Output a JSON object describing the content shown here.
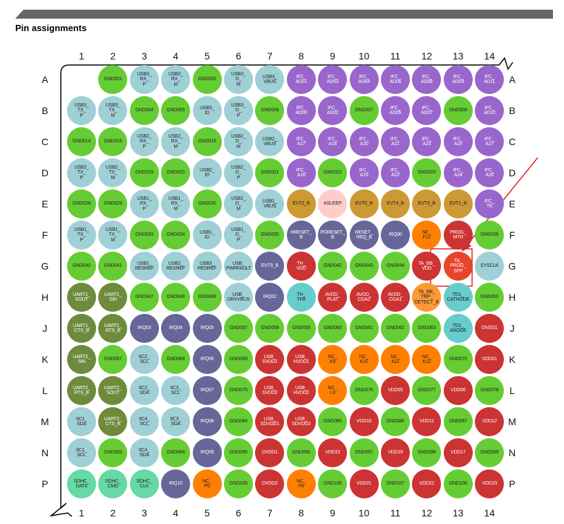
{
  "header": {
    "title": "Pin assignments"
  },
  "columns": [
    "1",
    "2",
    "3",
    "4",
    "5",
    "6",
    "7",
    "8",
    "9",
    "10",
    "11",
    "12",
    "13",
    "14"
  ],
  "rows": [
    "A",
    "B",
    "C",
    "D",
    "E",
    "F",
    "G",
    "H",
    "J",
    "K",
    "L",
    "M",
    "N",
    "P"
  ],
  "grid": [
    [
      null,
      {
        "label": "GND001",
        "color": "#66cc33"
      },
      {
        "label": "USB3_\nRX_\nP",
        "color": "#9fd0d6"
      },
      {
        "label": "USB3_\nRX_\nM",
        "color": "#9fd0d6"
      },
      {
        "label": "GND002",
        "color": "#66cc33"
      },
      {
        "label": "USB3_\nD_\nM",
        "color": "#9fd0d6"
      },
      {
        "label": "USB3_\nVBUS",
        "color": "#9fd0d6"
      },
      {
        "label": "IFC_\nAD01",
        "color": "#9966cc"
      },
      {
        "label": "IFC_\nAD03",
        "color": "#9966cc"
      },
      {
        "label": "IFC_\nAD04",
        "color": "#9966cc"
      },
      {
        "label": "IFC_\nAD06",
        "color": "#9966cc"
      },
      {
        "label": "IFC_\nAD08",
        "color": "#9966cc"
      },
      {
        "label": "IFC_\nAD09",
        "color": "#9966cc"
      },
      {
        "label": "IFC_\nAD11",
        "color": "#9966cc"
      }
    ],
    [
      {
        "label": "USB3_\nTX_\nP",
        "color": "#9fd0d6"
      },
      {
        "label": "USB3_\nTX_\nM",
        "color": "#9fd0d6"
      },
      {
        "label": "GND004",
        "color": "#66cc33"
      },
      {
        "label": "GND005",
        "color": "#66cc33"
      },
      {
        "label": "USB3_\nID",
        "color": "#9fd0d6"
      },
      {
        "label": "USB3_\nD_\nP",
        "color": "#9fd0d6"
      },
      {
        "label": "GND006",
        "color": "#66cc33"
      },
      {
        "label": "IFC_\nAD00",
        "color": "#9966cc"
      },
      {
        "label": "IFC_\nAD02",
        "color": "#9966cc"
      },
      {
        "label": "GND007",
        "color": "#66cc33"
      },
      {
        "label": "IFC_\nAD05",
        "color": "#9966cc"
      },
      {
        "label": "IFC_\nAD07",
        "color": "#9966cc"
      },
      {
        "label": "GND008",
        "color": "#66cc33"
      },
      {
        "label": "IFC_\nAD10",
        "color": "#9966cc"
      }
    ],
    [
      {
        "label": "GND014",
        "color": "#66cc33"
      },
      {
        "label": "GND015",
        "color": "#66cc33"
      },
      {
        "label": "USB2_\nRX_\nP",
        "color": "#9fd0d6"
      },
      {
        "label": "USB2_\nRX_\nM",
        "color": "#9fd0d6"
      },
      {
        "label": "GND016",
        "color": "#66cc33"
      },
      {
        "label": "USB2_\nD_\nM",
        "color": "#9fd0d6"
      },
      {
        "label": "USB2_\nVBUS",
        "color": "#9fd0d6"
      },
      {
        "label": "IFC_\nA17",
        "color": "#9966cc"
      },
      {
        "label": "IFC_\nA18",
        "color": "#9966cc"
      },
      {
        "label": "IFC_\nA20",
        "color": "#9966cc"
      },
      {
        "label": "IFC_\nA21",
        "color": "#9966cc"
      },
      {
        "label": "IFC_\nA23",
        "color": "#9966cc"
      },
      {
        "label": "IFC_\nA25",
        "color": "#9966cc"
      },
      {
        "label": "IFC_\nA27",
        "color": "#9966cc"
      }
    ],
    [
      {
        "label": "USB2_\nTX_\nP",
        "color": "#9fd0d6"
      },
      {
        "label": "USB2_\nTX_\nM",
        "color": "#9fd0d6"
      },
      {
        "label": "GND019",
        "color": "#66cc33"
      },
      {
        "label": "GND020",
        "color": "#66cc33"
      },
      {
        "label": "USB2_\nID",
        "color": "#9fd0d6"
      },
      {
        "label": "USB2_\nD_\nP",
        "color": "#9fd0d6"
      },
      {
        "label": "GND021",
        "color": "#66cc33"
      },
      {
        "label": "IFC_\nA16",
        "color": "#9966cc"
      },
      {
        "label": "GND022",
        "color": "#66cc33"
      },
      {
        "label": "IFC_\nA19",
        "color": "#9966cc"
      },
      {
        "label": "IFC_\nA22",
        "color": "#9966cc"
      },
      {
        "label": "GND023",
        "color": "#66cc33"
      },
      {
        "label": "IFC_\nA24",
        "color": "#9966cc"
      },
      {
        "label": "IFC_\nA26",
        "color": "#9966cc"
      }
    ],
    [
      {
        "label": "GND028",
        "color": "#66cc33"
      },
      {
        "label": "GND029",
        "color": "#66cc33"
      },
      {
        "label": "USB1_\nRX_\nP",
        "color": "#9fd0d6"
      },
      {
        "label": "USB1_\nRX_\nM",
        "color": "#9fd0d6"
      },
      {
        "label": "GND030",
        "color": "#66cc33"
      },
      {
        "label": "USB1_\nD_\nM",
        "color": "#9fd0d6"
      },
      {
        "label": "USB1_\nVBUS",
        "color": "#9fd0d6"
      },
      {
        "label": "EVT2_B",
        "color": "#cc9933"
      },
      {
        "label": "ASLEEP",
        "color": "#ffcccc"
      },
      {
        "label": "EVT0_B",
        "color": "#cc9933"
      },
      {
        "label": "EVT4_B",
        "color": "#cc9933"
      },
      {
        "label": "EVT3_B",
        "color": "#cc9933"
      },
      {
        "label": "EVT1_B",
        "color": "#cc9933"
      },
      {
        "label": "IFC_\nTE",
        "color": "#9966cc"
      }
    ],
    [
      {
        "label": "USB1_\nTX_\nP",
        "color": "#9fd0d6"
      },
      {
        "label": "USB1_\nTX_\nM",
        "color": "#9fd0d6"
      },
      {
        "label": "GND033",
        "color": "#66cc33"
      },
      {
        "label": "GND034",
        "color": "#66cc33"
      },
      {
        "label": "USB1_\nID",
        "color": "#9fd0d6"
      },
      {
        "label": "USB1_\nD_\nP",
        "color": "#9fd0d6"
      },
      {
        "label": "GND035",
        "color": "#66cc33"
      },
      {
        "label": "HRESET_\nB",
        "color": "#666699"
      },
      {
        "label": "PORESET_\nB",
        "color": "#666699"
      },
      {
        "label": "RESET_\nREQ_B",
        "color": "#666699"
      },
      {
        "label": "IRQ00",
        "color": "#666699"
      },
      {
        "label": "NC_\nF12",
        "color": "#ff8000"
      },
      {
        "label": "PROG_\nMTR",
        "color": "#cc3333"
      },
      {
        "label": "GND036",
        "color": "#66cc33"
      }
    ],
    [
      {
        "label": "GND040",
        "color": "#66cc33"
      },
      {
        "label": "GND041",
        "color": "#66cc33"
      },
      {
        "label": "USB1_\nRESREF",
        "color": "#9fd0d6"
      },
      {
        "label": "USB2_\nRESREF",
        "color": "#9fd0d6"
      },
      {
        "label": "USB3_\nRESREF",
        "color": "#9fd0d6"
      },
      {
        "label": "USB_\nPWRFAULT",
        "color": "#9fd0d6"
      },
      {
        "label": "EVT9_B",
        "color": "#666699"
      },
      {
        "label": "TH_\nVDD",
        "color": "#cc3333"
      },
      {
        "label": "GND042",
        "color": "#66cc33"
      },
      {
        "label": "GND043",
        "color": "#66cc33"
      },
      {
        "label": "GND044",
        "color": "#66cc33"
      },
      {
        "label": "TA_BB_\nVDD",
        "color": "#cc3333"
      },
      {
        "label": "TA_\nPROG_\nSFP",
        "color": "#e8452a"
      },
      {
        "label": "SYSCLK",
        "color": "#9fd0d6"
      }
    ],
    [
      {
        "label": "UART1_\nSOUT",
        "color": "#6e8b3d"
      },
      {
        "label": "UART1_\nSIN",
        "color": "#6e8b3d"
      },
      {
        "label": "GND047",
        "color": "#66cc33"
      },
      {
        "label": "GND048",
        "color": "#66cc33"
      },
      {
        "label": "GND049",
        "color": "#66cc33"
      },
      {
        "label": "USB_\nDRVVBUS",
        "color": "#9fd0d6"
      },
      {
        "label": "IRQ02",
        "color": "#666699"
      },
      {
        "label": "TH_\nTPA",
        "color": "#66cccc"
      },
      {
        "label": "AVDD_\nPLAT",
        "color": "#cc3333"
      },
      {
        "label": "AVDD_\nCGA2",
        "color": "#cc3333"
      },
      {
        "label": "AVDD_\nCGA1",
        "color": "#cc3333"
      },
      {
        "label": "TA_BB_\nTMP_\nDETECT_B",
        "color": "#ff9933"
      },
      {
        "label": "TD1_\nCATHODE",
        "color": "#66cccc"
      },
      {
        "label": "GND050",
        "color": "#66cc33"
      }
    ],
    [
      {
        "label": "UART1_\nCTS_B",
        "color": "#6e8b3d"
      },
      {
        "label": "UART1_\nRTS_B",
        "color": "#6e8b3d"
      },
      {
        "label": "IRQ03",
        "color": "#666699"
      },
      {
        "label": "IRQ04",
        "color": "#666699"
      },
      {
        "label": "IRQ05",
        "color": "#666699"
      },
      {
        "label": "GND057",
        "color": "#66cc33"
      },
      {
        "label": "GND058",
        "color": "#66cc33"
      },
      {
        "label": "GND059",
        "color": "#66cc33"
      },
      {
        "label": "GND060",
        "color": "#66cc33"
      },
      {
        "label": "GND061",
        "color": "#66cc33"
      },
      {
        "label": "GND062",
        "color": "#66cc33"
      },
      {
        "label": "GND063",
        "color": "#66cc33"
      },
      {
        "label": "TD1_\nANODE",
        "color": "#66cccc"
      },
      {
        "label": "OVDD1",
        "color": "#cc3333"
      }
    ],
    [
      {
        "label": "UART2_\nSIN",
        "color": "#6e8b3d"
      },
      {
        "label": "GND067",
        "color": "#66cc33"
      },
      {
        "label": "IIC2_\nSCL",
        "color": "#9fd0d6"
      },
      {
        "label": "GND068",
        "color": "#66cc33"
      },
      {
        "label": "IRQ06",
        "color": "#666699"
      },
      {
        "label": "GND069",
        "color": "#66cc33"
      },
      {
        "label": "USB_\nSVDD1",
        "color": "#cc3333"
      },
      {
        "label": "USB_\nHVDD1",
        "color": "#cc3333"
      },
      {
        "label": "NC_\nK9",
        "color": "#ff8000"
      },
      {
        "label": "NC_\nK10",
        "color": "#ff8000"
      },
      {
        "label": "NC_\nK11",
        "color": "#ff8000"
      },
      {
        "label": "NC_\nK12",
        "color": "#ff8000"
      },
      {
        "label": "GND070",
        "color": "#66cc33"
      },
      {
        "label": "VDD01",
        "color": "#cc3333"
      }
    ],
    [
      {
        "label": "UART2_\nRTS_B",
        "color": "#6e8b3d"
      },
      {
        "label": "UART2_\nSOUT",
        "color": "#6e8b3d"
      },
      {
        "label": "IIC2_\nSDA",
        "color": "#9fd0d6"
      },
      {
        "label": "IIC3_\nSCL",
        "color": "#9fd0d6"
      },
      {
        "label": "IRQ07",
        "color": "#666699"
      },
      {
        "label": "GND075",
        "color": "#66cc33"
      },
      {
        "label": "USB_\nSVDD2",
        "color": "#cc3333"
      },
      {
        "label": "USB_\nHVDD2",
        "color": "#cc3333"
      },
      {
        "label": "NC_\nL9",
        "color": "#ff8000"
      },
      {
        "label": "GND076",
        "color": "#66cc33"
      },
      {
        "label": "VDD05",
        "color": "#cc3333"
      },
      {
        "label": "GND077",
        "color": "#66cc33"
      },
      {
        "label": "VDD06",
        "color": "#cc3333"
      },
      {
        "label": "GND078",
        "color": "#66cc33"
      }
    ],
    [
      {
        "label": "IIC1_\nSDA",
        "color": "#9fd0d6"
      },
      {
        "label": "UART2_\nCTS_B",
        "color": "#6e8b3d"
      },
      {
        "label": "IIC4_\nSCL",
        "color": "#9fd0d6"
      },
      {
        "label": "IIC3_\nSDA",
        "color": "#9fd0d6"
      },
      {
        "label": "IRQ08",
        "color": "#666699"
      },
      {
        "label": "GND084",
        "color": "#66cc33"
      },
      {
        "label": "USB_\nSDVDD1",
        "color": "#cc3333"
      },
      {
        "label": "USB_\nSDVDD2",
        "color": "#cc3333"
      },
      {
        "label": "GND085",
        "color": "#66cc33"
      },
      {
        "label": "VDD10",
        "color": "#cc3333"
      },
      {
        "label": "GND086",
        "color": "#66cc33"
      },
      {
        "label": "VDD11",
        "color": "#cc3333"
      },
      {
        "label": "GND087",
        "color": "#66cc33"
      },
      {
        "label": "VDD12",
        "color": "#cc3333"
      }
    ],
    [
      {
        "label": "IIC1_\nSCL",
        "color": "#9fd0d6"
      },
      {
        "label": "GND093",
        "color": "#66cc33"
      },
      {
        "label": "IIC4_\nSDA",
        "color": "#9fd0d6"
      },
      {
        "label": "GND094",
        "color": "#66cc33"
      },
      {
        "label": "IRQ09",
        "color": "#666699"
      },
      {
        "label": "GND095",
        "color": "#66cc33"
      },
      {
        "label": "DVDD1",
        "color": "#cc3333"
      },
      {
        "label": "GND096",
        "color": "#66cc33"
      },
      {
        "label": "VDD15",
        "color": "#cc3333"
      },
      {
        "label": "GND097",
        "color": "#66cc33"
      },
      {
        "label": "VDD16",
        "color": "#cc3333"
      },
      {
        "label": "GND098",
        "color": "#66cc33"
      },
      {
        "label": "VDD17",
        "color": "#cc3333"
      },
      {
        "label": "GND099",
        "color": "#66cc33"
      }
    ],
    [
      {
        "label": "SDHC_\nDAT0",
        "color": "#66d9a6"
      },
      {
        "label": "SDHC_\nCMD",
        "color": "#66d9a6"
      },
      {
        "label": "SDHC_\nCLK",
        "color": "#66d9a6"
      },
      {
        "label": "IRQ10",
        "color": "#666699"
      },
      {
        "label": "NC_\nP5",
        "color": "#ff8000"
      },
      {
        "label": "GND105",
        "color": "#66cc33"
      },
      {
        "label": "DVDD2",
        "color": "#cc3333"
      },
      {
        "label": "NC_\nP8",
        "color": "#ff8000"
      },
      {
        "label": "GND106",
        "color": "#66cc33"
      },
      {
        "label": "VDD21",
        "color": "#cc3333"
      },
      {
        "label": "GND107",
        "color": "#66cc33"
      },
      {
        "label": "VDD22",
        "color": "#cc3333"
      },
      {
        "label": "GND108",
        "color": "#66cc33"
      },
      {
        "label": "VDD23",
        "color": "#cc3333"
      }
    ]
  ]
}
